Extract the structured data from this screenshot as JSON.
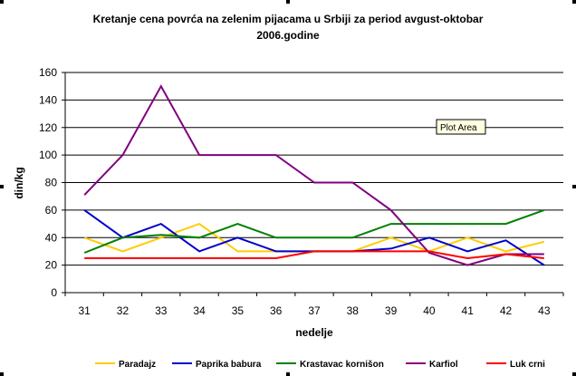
{
  "chart_data": {
    "type": "line",
    "title": [
      "Kretanje cena povrća na zelenim pijacama u Srbiji za period avgust-oktobar",
      "2006.godine"
    ],
    "xlabel": "nedelje",
    "ylabel": "din/kg",
    "x": [
      "31",
      "32",
      "33",
      "34",
      "35",
      "36",
      "37",
      "38",
      "39",
      "40",
      "41",
      "42",
      "43"
    ],
    "yticks": [
      "0",
      "20",
      "40",
      "60",
      "80",
      "100",
      "120",
      "140",
      "160"
    ],
    "ylim": [
      0,
      160
    ],
    "grid": true,
    "legend_position": "bottom",
    "series": [
      {
        "name": "Paradajz",
        "color": "#ffcc00",
        "values": [
          40,
          30,
          40,
          50,
          30,
          30,
          30,
          30,
          40,
          30,
          40,
          30,
          37
        ]
      },
      {
        "name": "Paprika babura",
        "color": "#0000cc",
        "values": [
          60,
          40,
          50,
          30,
          40,
          30,
          30,
          30,
          32,
          40,
          30,
          38,
          20
        ]
      },
      {
        "name": "Krastavac kornišon",
        "color": "#008000",
        "values": [
          29,
          40,
          42,
          40,
          50,
          40,
          40,
          40,
          50,
          50,
          50,
          50,
          60
        ]
      },
      {
        "name": "Karfiol",
        "color": "#800080",
        "values": [
          71,
          100,
          150,
          100,
          100,
          100,
          80,
          80,
          60,
          29,
          20,
          28,
          28
        ]
      },
      {
        "name": "Luk crni",
        "color": "#ff0000",
        "values": [
          25,
          25,
          25,
          25,
          25,
          25,
          30,
          30,
          30,
          30,
          25,
          28,
          25
        ]
      }
    ]
  },
  "tooltip": {
    "label": "Plot Area"
  }
}
